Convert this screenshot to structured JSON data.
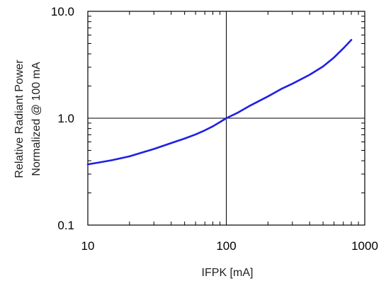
{
  "chart_data": {
    "type": "line",
    "title": "",
    "xlabel": "IFPK [mA]",
    "ylabel": "Relative Radiant Power",
    "ylabel_line2": "Normalized @ 100 mA",
    "x_scale": "log",
    "y_scale": "log",
    "xlim": [
      10,
      1000
    ],
    "ylim": [
      0.1,
      10.0
    ],
    "x_ticks": [
      {
        "value": 10,
        "label": "10"
      },
      {
        "value": 100,
        "label": "100"
      },
      {
        "value": 1000,
        "label": "1000"
      }
    ],
    "y_ticks": [
      {
        "value": 0.1,
        "label": "0.1"
      },
      {
        "value": 1.0,
        "label": "1.0"
      },
      {
        "value": 10.0,
        "label": "10.0"
      }
    ],
    "reference_lines": {
      "x": 100,
      "y": 1.0
    },
    "grid": false,
    "legend": "none",
    "series_color": "#1f1fe6",
    "series": [
      {
        "x": [
          10,
          12,
          15,
          20,
          25,
          30,
          40,
          50,
          60,
          70,
          80,
          90,
          100,
          120,
          150,
          200,
          250,
          300,
          400,
          500,
          600,
          700,
          800
        ],
        "y": [
          0.37,
          0.385,
          0.405,
          0.44,
          0.48,
          0.515,
          0.585,
          0.645,
          0.705,
          0.77,
          0.84,
          0.92,
          1.0,
          1.12,
          1.32,
          1.6,
          1.88,
          2.1,
          2.55,
          3.05,
          3.7,
          4.5,
          5.4
        ]
      }
    ]
  }
}
